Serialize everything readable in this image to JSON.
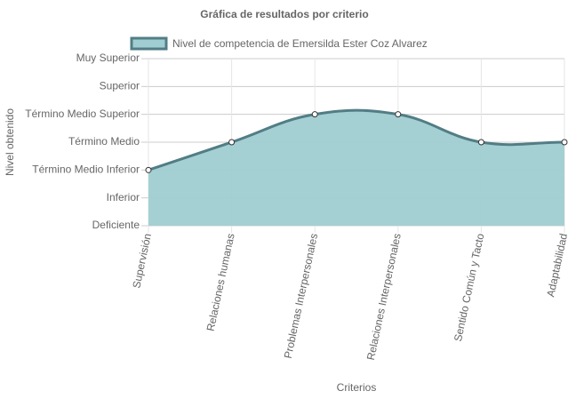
{
  "chart_data": {
    "type": "line",
    "title": "Gráfica de resultados por criterio",
    "x_label": "Criterios",
    "y_label": "Nivel obtenido",
    "categories": [
      "Supervisión",
      "Relaciones humanas",
      "Problemas Interpersonales",
      "Relaciones Interpersonales",
      "Sentido Común y Tacto",
      "Adaptabilidad"
    ],
    "series": [
      {
        "name": "Nivel de competencia de Emersilda Ester Coz Alvarez",
        "color": "#527d85",
        "fill": "#a0cdd1",
        "values": [
          2,
          3,
          4,
          4,
          3,
          3
        ]
      }
    ],
    "ylim": [
      0,
      6
    ],
    "yticks": [
      {
        "value": 0,
        "label": "Deficiente"
      },
      {
        "value": 1,
        "label": "Inferior"
      },
      {
        "value": 2,
        "label": "Término Medio Inferior"
      },
      {
        "value": 3,
        "label": "Término Medio"
      },
      {
        "value": 4,
        "label": "Término Medio Superior"
      },
      {
        "value": 5,
        "label": "Superior"
      },
      {
        "value": 6,
        "label": "Muy Superior"
      }
    ],
    "grid": true,
    "legend": "top"
  }
}
